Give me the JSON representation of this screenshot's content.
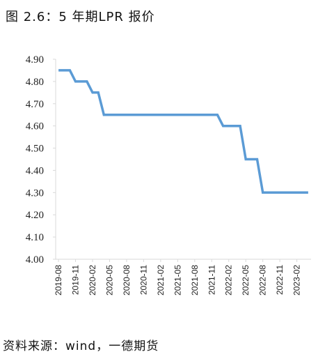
{
  "header": {
    "title": "图 2.6：5 年期LPR 报价"
  },
  "footer": {
    "source": "资料来源：wind，一德期货"
  },
  "colors": {
    "line": "#5b9bd5",
    "axis": "#d9d9d9"
  },
  "chart_data": {
    "type": "line",
    "title": "图 2.6：5 年期LPR 报价",
    "xlabel": "",
    "ylabel": "",
    "ylim": [
      4.0,
      4.9
    ],
    "grid": false,
    "y_ticks": [
      "4.00",
      "4.10",
      "4.20",
      "4.30",
      "4.40",
      "4.50",
      "4.60",
      "4.70",
      "4.80",
      "4.90"
    ],
    "x_tick_labels": [
      "2019-08",
      "2019-11",
      "2020-02",
      "2020-05",
      "2020-08",
      "2020-11",
      "2021-02",
      "2021-05",
      "2021-08",
      "2021-11",
      "2022-02",
      "2022-05",
      "2022-08",
      "2022-11",
      "2023-02"
    ],
    "x": [
      "2019-08",
      "2019-09",
      "2019-10",
      "2019-11",
      "2019-12",
      "2020-01",
      "2020-02",
      "2020-03",
      "2020-04",
      "2020-05",
      "2020-06",
      "2020-07",
      "2020-08",
      "2020-09",
      "2020-10",
      "2020-11",
      "2020-12",
      "2021-01",
      "2021-02",
      "2021-03",
      "2021-04",
      "2021-05",
      "2021-06",
      "2021-07",
      "2021-08",
      "2021-09",
      "2021-10",
      "2021-11",
      "2021-12",
      "2022-01",
      "2022-02",
      "2022-03",
      "2022-04",
      "2022-05",
      "2022-06",
      "2022-07",
      "2022-08",
      "2022-09",
      "2022-10",
      "2022-11",
      "2022-12",
      "2023-01",
      "2023-02",
      "2023-03",
      "2023-04"
    ],
    "series": [
      {
        "values": [
          4.85,
          4.85,
          4.85,
          4.8,
          4.8,
          4.8,
          4.75,
          4.75,
          4.65,
          4.65,
          4.65,
          4.65,
          4.65,
          4.65,
          4.65,
          4.65,
          4.65,
          4.65,
          4.65,
          4.65,
          4.65,
          4.65,
          4.65,
          4.65,
          4.65,
          4.65,
          4.65,
          4.65,
          4.65,
          4.6,
          4.6,
          4.6,
          4.6,
          4.45,
          4.45,
          4.45,
          4.3,
          4.3,
          4.3,
          4.3,
          4.3,
          4.3,
          4.3,
          4.3,
          4.3
        ]
      }
    ]
  }
}
